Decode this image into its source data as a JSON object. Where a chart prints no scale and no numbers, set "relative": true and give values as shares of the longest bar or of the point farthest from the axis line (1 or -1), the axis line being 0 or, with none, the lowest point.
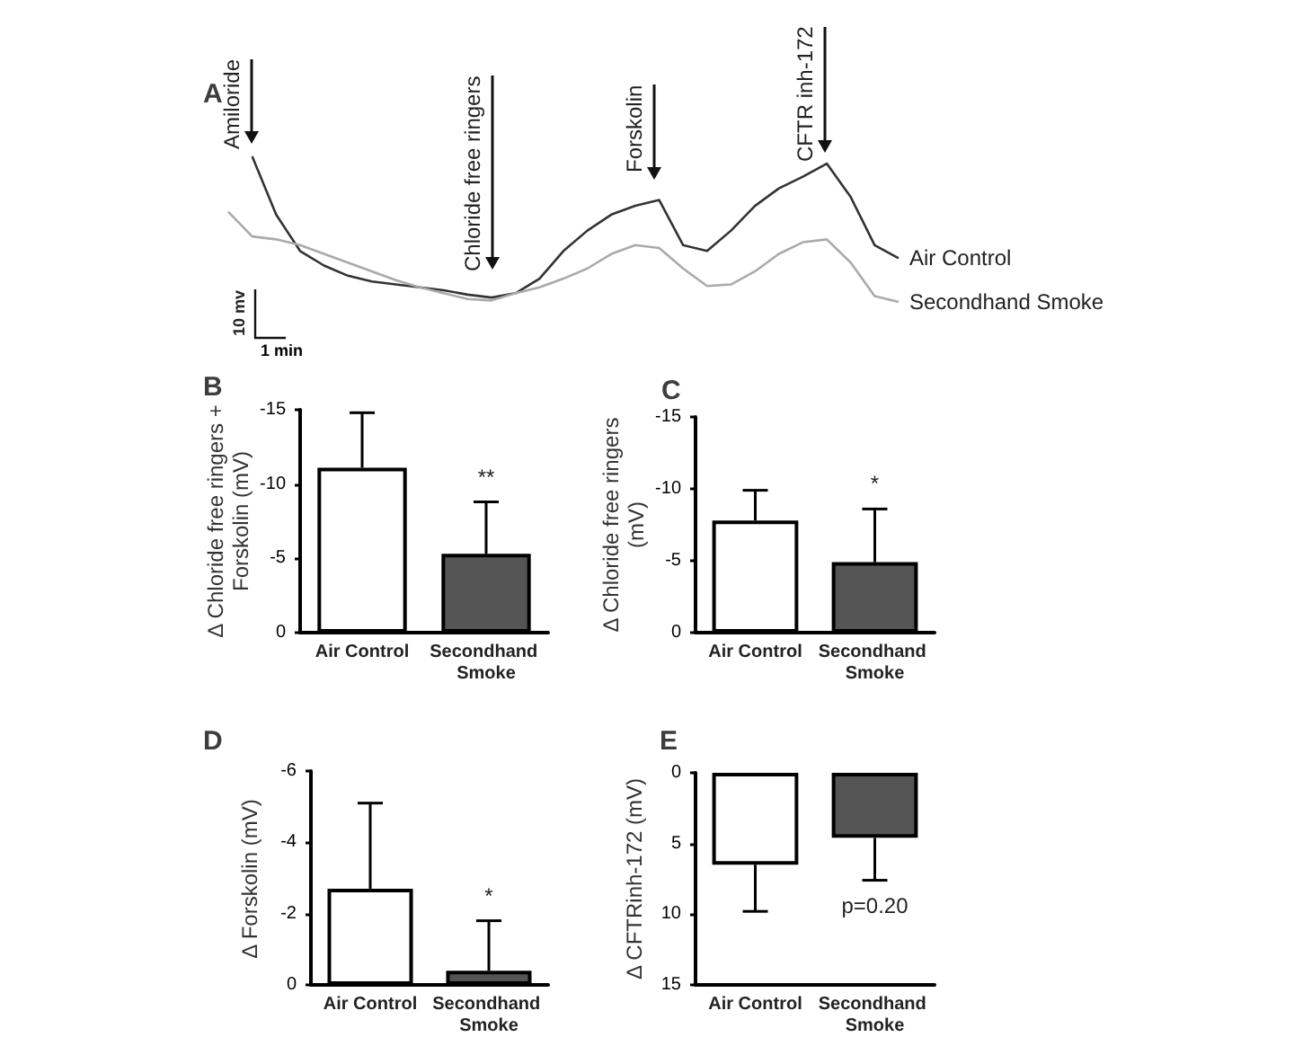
{
  "chart_data": [
    {
      "type": "line",
      "title": "A",
      "relative": true,
      "legend": false,
      "marker": "none",
      "categories": [
        null,
        null,
        null,
        null,
        null,
        null,
        null,
        null,
        null,
        null,
        null,
        null,
        null,
        null,
        null,
        null,
        null,
        null,
        null,
        null,
        null,
        null,
        null,
        null,
        null,
        null,
        null,
        null,
        null
      ],
      "series": [
        {
          "name": "Air Control",
          "color": "#333333",
          "values": [
            null,
            1.0,
            0.6,
            0.35,
            0.25,
            0.18,
            0.14,
            0.12,
            0.1,
            0.08,
            0.05,
            0.03,
            0.06,
            0.16,
            0.35,
            0.49,
            0.6,
            0.66,
            0.7,
            0.39,
            0.35,
            0.49,
            0.66,
            0.78,
            0.86,
            0.95,
            0.72,
            0.39,
            0.3
          ]
        },
        {
          "name": "Secondhand Smoke",
          "color": "#aaaaaa",
          "values": [
            0.62,
            0.45,
            0.43,
            0.39,
            0.33,
            0.27,
            0.21,
            0.15,
            0.1,
            0.06,
            0.02,
            0.01,
            0.06,
            0.1,
            0.16,
            0.23,
            0.33,
            0.39,
            0.37,
            0.23,
            0.11,
            0.12,
            0.21,
            0.33,
            0.41,
            0.43,
            0.27,
            0.04,
            0.0
          ]
        }
      ],
      "annotations": [
        "Amiloride",
        "Chloride free ringers",
        "Forskolin",
        "CFTR inh-172",
        "10 mv",
        "1 min"
      ]
    },
    {
      "type": "bar",
      "title": "B",
      "ylabel": "Δ Chloride free ringers + Forskolin (mV)",
      "grid": false,
      "categories": [
        "Air Control",
        "Secondhand Smoke"
      ],
      "values": [
        -11.1,
        -5.3
      ],
      "colors": [
        "#ffffff",
        "#555555"
      ],
      "errors": [
        [
          -14.8,
          -11.1
        ],
        [
          -8.8,
          -5.3
        ]
      ],
      "ylim": [
        0,
        -15
      ],
      "yticks": [
        0,
        -5,
        -10,
        -15
      ],
      "annotations": [
        "**"
      ]
    },
    {
      "type": "bar",
      "title": "C",
      "ylabel": "Δ Chloride free ringers (mV)",
      "grid": false,
      "categories": [
        "Air Control",
        "Secondhand Smoke"
      ],
      "values": [
        -7.8,
        -4.9
      ],
      "colors": [
        "#ffffff",
        "#555555"
      ],
      "errors": [
        [
          -9.9,
          -7.8
        ],
        [
          -8.6,
          -4.9
        ]
      ],
      "ylim": [
        0,
        -15
      ],
      "yticks": [
        0,
        -5,
        -10,
        -15
      ],
      "annotations": [
        "*"
      ]
    },
    {
      "type": "bar",
      "title": "D",
      "ylabel": "Δ Forskolin (mV)",
      "grid": false,
      "categories": [
        "Air Control",
        "Secondhand Smoke"
      ],
      "values": [
        -2.7,
        -0.4
      ],
      "colors": [
        "#ffffff",
        "#555555"
      ],
      "errors": [
        [
          -5.1,
          -2.7
        ],
        [
          -1.8,
          -0.4
        ]
      ],
      "ylim": [
        0,
        -6
      ],
      "yticks": [
        0,
        -2,
        -4,
        -6
      ],
      "annotations": [
        "*"
      ]
    },
    {
      "type": "bar",
      "title": "E",
      "ylabel": "Δ CFTRinh-172 (mV)",
      "grid": false,
      "categories": [
        "Air Control",
        "Secondhand Smoke"
      ],
      "values": [
        6.5,
        4.6
      ],
      "colors": [
        "#ffffff",
        "#555555"
      ],
      "errors": [
        [
          6.5,
          9.8
        ],
        [
          4.6,
          7.6
        ]
      ],
      "ylim": [
        15,
        0
      ],
      "yticks": [
        0,
        5,
        10,
        15
      ],
      "annotations": [
        "p=0.20"
      ]
    }
  ]
}
